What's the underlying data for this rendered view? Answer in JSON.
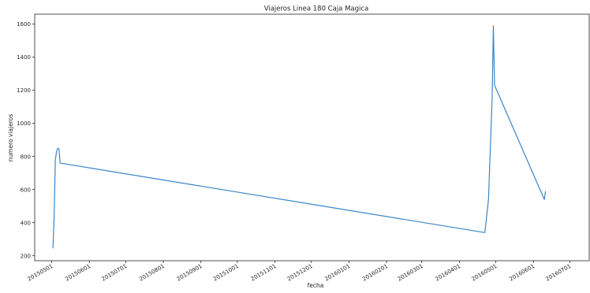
{
  "chart_data": {
    "type": "line",
    "title": "Viajeros Linea 180 Caja Magica",
    "xlabel": "fecha",
    "ylabel": "numero viajeros",
    "x_tick_labels": [
      "20150501",
      "20150601",
      "20150701",
      "20150801",
      "20150901",
      "20151001",
      "20151101",
      "20151201",
      "20160101",
      "20160201",
      "20160301",
      "20160401",
      "20160501",
      "20160601",
      "20160701"
    ],
    "y_ticks": [
      200,
      400,
      600,
      800,
      1000,
      1200,
      1400,
      1600
    ],
    "xlim": [
      "2015-04-17",
      "2016-07-17"
    ],
    "ylim": [
      170,
      1660
    ],
    "grid": false,
    "legend": "none",
    "series": [
      {
        "color": "#3a86c8",
        "points": [
          {
            "x": "2015-05-02",
            "y": 245
          },
          {
            "x": "2015-05-03",
            "y": 430
          },
          {
            "x": "2015-05-04",
            "y": 780
          },
          {
            "x": "2015-05-05",
            "y": 830
          },
          {
            "x": "2015-05-06",
            "y": 850
          },
          {
            "x": "2015-05-07",
            "y": 845
          },
          {
            "x": "2015-05-08",
            "y": 760
          },
          {
            "x": "2016-04-22",
            "y": 340
          },
          {
            "x": "2016-04-25",
            "y": 540
          },
          {
            "x": "2016-04-27",
            "y": 950
          },
          {
            "x": "2016-04-28",
            "y": 1150
          },
          {
            "x": "2016-04-29",
            "y": 1590
          },
          {
            "x": "2016-04-30",
            "y": 1230
          },
          {
            "x": "2016-06-10",
            "y": 540
          },
          {
            "x": "2016-06-11",
            "y": 590
          }
        ]
      }
    ]
  }
}
